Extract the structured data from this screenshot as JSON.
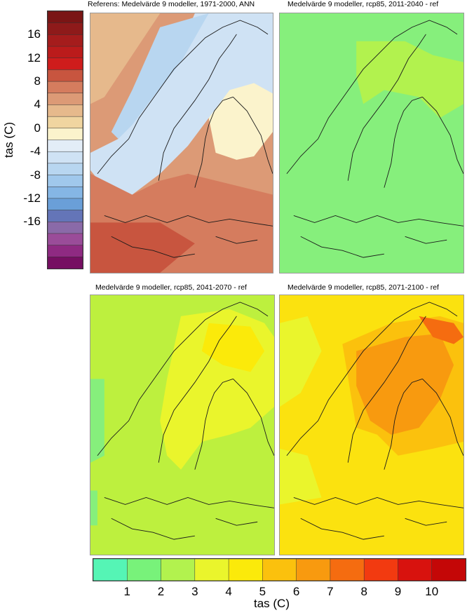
{
  "panels": [
    {
      "id": "ref",
      "title": "Referens: Medelvärde 9 modeller, 1971-2000, ANN"
    },
    {
      "id": "p1",
      "title": "Medelvärde 9 modeller, rcp85, 2011-2040 - ref"
    },
    {
      "id": "p2",
      "title": "Medelvärde 9 modeller, rcp85, 2041-2070 - ref"
    },
    {
      "id": "p3",
      "title": "Medelvärde 9 modeller, rcp85, 2071-2100 - ref"
    }
  ],
  "left_colorbar": {
    "label": "tas (C)",
    "ticks": [
      "16",
      "12",
      "8",
      "4",
      "0",
      "-4",
      "-8",
      "-12",
      "-16"
    ],
    "colors": [
      "#7a1515",
      "#8e1a1a",
      "#a51c1c",
      "#bb1b1b",
      "#cf1c1c",
      "#c8553f",
      "#d57c5e",
      "#dc9a76",
      "#e6b98c",
      "#f0d5a0",
      "#fbf3cc",
      "#e3edf7",
      "#cfe2f4",
      "#b8d6f0",
      "#a0c8ec",
      "#85b6e5",
      "#6a9fd8",
      "#6475b8",
      "#8a6aa8",
      "#9a4c99",
      "#8f2a82",
      "#760e62"
    ]
  },
  "bottom_colorbar": {
    "label": "tas (C)",
    "ticks": [
      "1",
      "2",
      "3",
      "4",
      "5",
      "6",
      "7",
      "8",
      "9",
      "10"
    ],
    "colors": [
      "#55f5b5",
      "#78f27a",
      "#b2f24e",
      "#eaf52c",
      "#fbea0a",
      "#fbc10d",
      "#f89a0f",
      "#f56c10",
      "#f23a10",
      "#d8120e",
      "#c40707"
    ]
  },
  "map_colors": {
    "ref_fill": "#dc9a76",
    "p1_fill": "#86ef7c",
    "p2_fill": "#bdf03e",
    "p3_fill": "#fbe20f",
    "border": "#1a1a1a"
  }
}
